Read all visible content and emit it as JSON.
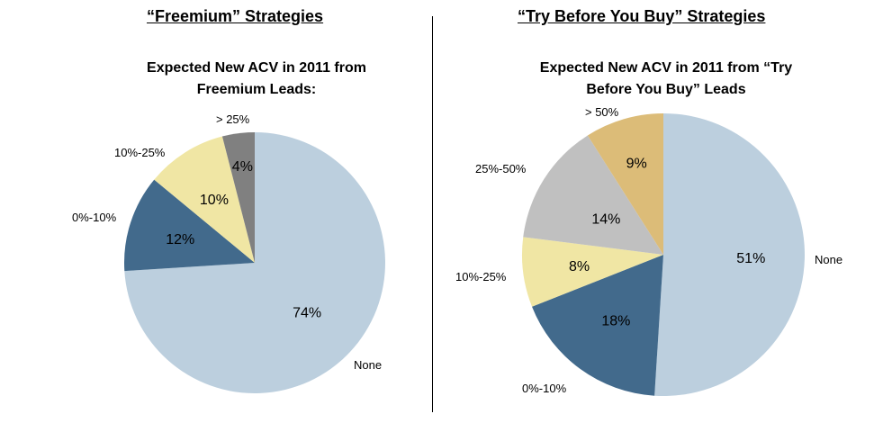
{
  "left_header": "“Freemium” Strategies",
  "right_header": "“Try Before You Buy” Strategies",
  "chart_data": [
    {
      "type": "pie",
      "title_line1": "Expected New ACV in 2011 from",
      "title_line2": "Freemium Leads:",
      "slices": [
        {
          "label": "None",
          "value": 74,
          "display": "74%",
          "color": "#bccfde"
        },
        {
          "label": "0%-10%",
          "value": 12,
          "display": "12%",
          "color": "#426a8c"
        },
        {
          "label": "10%-25%",
          "value": 10,
          "display": "10%",
          "color": "#f0e6a4"
        },
        {
          "label": "> 25%",
          "value": 4,
          "display": "4%",
          "color": "#808080"
        }
      ]
    },
    {
      "type": "pie",
      "title_line1": "Expected New ACV in 2011 from “Try",
      "title_line2": "Before You Buy” Leads",
      "slices": [
        {
          "label": "None",
          "value": 51,
          "display": "51%",
          "color": "#bccfde"
        },
        {
          "label": "0%-10%",
          "value": 18,
          "display": "18%",
          "color": "#426a8c"
        },
        {
          "label": "10%-25%",
          "value": 8,
          "display": "8%",
          "color": "#f0e6a4"
        },
        {
          "label": "25%-50%",
          "value": 14,
          "display": "14%",
          "color": "#c0c0c0"
        },
        {
          "label": "> 50%",
          "value": 9,
          "display": "9%",
          "color": "#dcbc78"
        }
      ]
    }
  ]
}
